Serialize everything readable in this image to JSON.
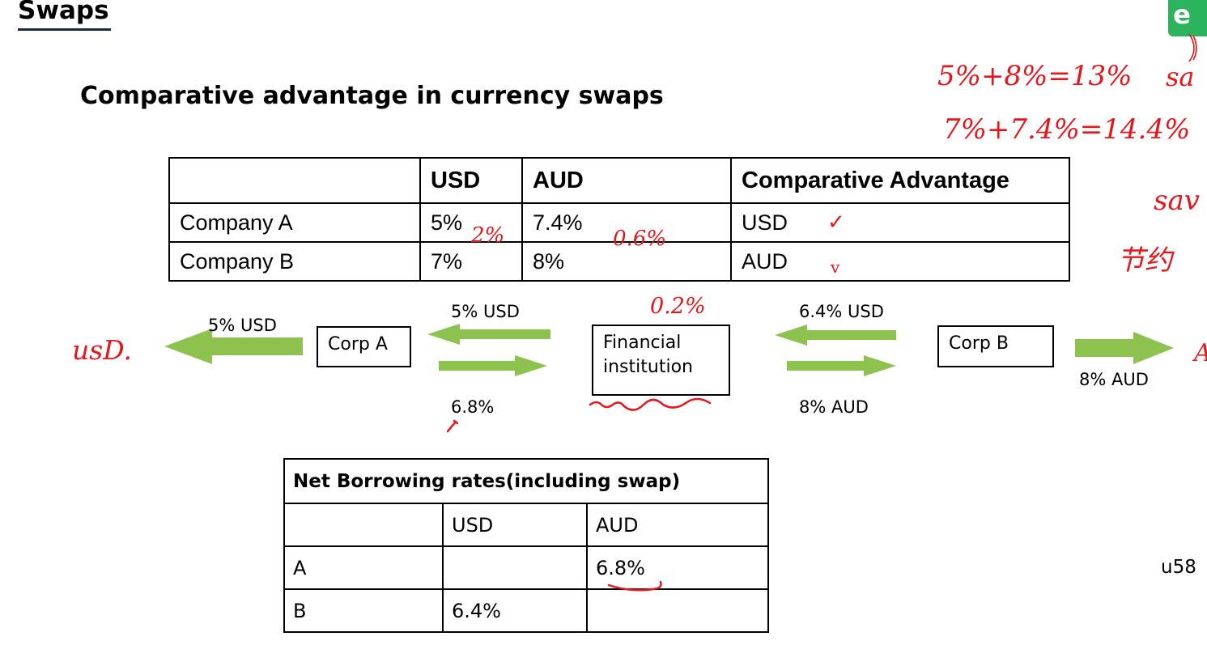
{
  "slide": {
    "title": "Swaps",
    "subtitle": "Comparative advantage in  currency swaps",
    "logo_letter": "e",
    "footer_text": "u58"
  },
  "rates_table": {
    "header": [
      "",
      "USD",
      "AUD",
      "Comparative Advantage"
    ],
    "rows": [
      [
        "Company A",
        "5%",
        "7.4%",
        "USD"
      ],
      [
        "Company B",
        "7%",
        "8%",
        "AUD"
      ]
    ]
  },
  "flow": {
    "corp_a": "Corp A",
    "fin_line1": "Financial",
    "fin_line2": "institution",
    "corp_b": "Corp B",
    "left_out": "5% USD",
    "a_fi_top": "5% USD",
    "a_fi_bottom": "6.8%",
    "fi_b_top": "6.4% USD",
    "fi_b_bottom": "8% AUD",
    "right_out": "8% AUD"
  },
  "net_table": {
    "title": "Net Borrowing rates(including swap)",
    "header": [
      "",
      "USD",
      "AUD"
    ],
    "rows": [
      [
        "A",
        "",
        "6.8%"
      ],
      [
        "B",
        "6.4%",
        ""
      ]
    ]
  },
  "handwriting": {
    "sum1": "5%+8%=13%",
    "sum2": "7%+7.4%=14.4%",
    "sa": "sa",
    "sav": "sav",
    "cjk": "节约",
    "diff_usd": "2%",
    "diff_aud": "0.6%",
    "fi_gain": "0.2%",
    "usd_left": "usD.",
    "a_right": "A",
    "check_a": "✓",
    "check_b": "ⅴ"
  },
  "colors": {
    "arrow": "#8dc24f",
    "ink_red": "#e8151a",
    "logo": "#2bb35e",
    "title_underline": "#1b2a44"
  }
}
